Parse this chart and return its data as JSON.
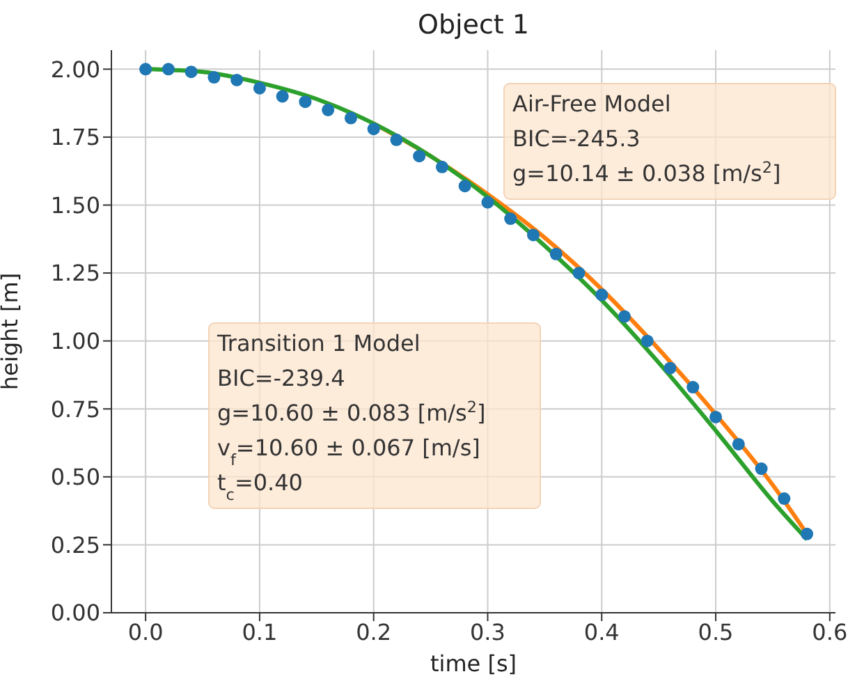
{
  "chart_data": {
    "type": "scatter",
    "title": "Object 1",
    "xlabel": "time [s]",
    "ylabel": "height [m]",
    "xlim": [
      -0.03,
      0.605
    ],
    "xticks": [
      {
        "value": 0,
        "label": "0.0"
      },
      {
        "value": 0.1,
        "label": "0.1"
      },
      {
        "value": 0.2,
        "label": "0.2"
      },
      {
        "value": 0.3,
        "label": "0.3"
      },
      {
        "value": 0.4,
        "label": "0.4"
      },
      {
        "value": 0.5,
        "label": "0.5"
      },
      {
        "value": 0.6,
        "label": "0.6"
      }
    ],
    "ylim": [
      0,
      2.07
    ],
    "yticks": [
      {
        "value": 0,
        "label": "0.00"
      },
      {
        "value": 0.25,
        "label": "0.25"
      },
      {
        "value": 0.5,
        "label": "0.50"
      },
      {
        "value": 0.75,
        "label": "0.75"
      },
      {
        "value": 1,
        "label": "1.00"
      },
      {
        "value": 1.25,
        "label": "1.25"
      },
      {
        "value": 1.5,
        "label": "1.50"
      },
      {
        "value": 1.75,
        "label": "1.75"
      },
      {
        "value": 2,
        "label": "2.00"
      }
    ],
    "grid": true,
    "series": [
      {
        "color": "#1f77b4",
        "marker": "circle",
        "x": [
          0,
          0.02,
          0.04,
          0.06,
          0.08,
          0.1,
          0.12,
          0.14,
          0.16,
          0.18,
          0.2,
          0.22,
          0.24,
          0.26,
          0.28,
          0.3,
          0.32,
          0.34,
          0.36,
          0.38,
          0.4,
          0.42,
          0.44,
          0.46,
          0.48,
          0.5,
          0.52,
          0.54,
          0.56,
          0.58
        ],
        "values": [
          2.0,
          2.0,
          1.99,
          1.97,
          1.96,
          1.93,
          1.9,
          1.88,
          1.85,
          1.82,
          1.78,
          1.74,
          1.68,
          1.64,
          1.57,
          1.51,
          1.45,
          1.39,
          1.32,
          1.25,
          1.17,
          1.09,
          1.0,
          0.9,
          0.83,
          0.72,
          0.62,
          0.53,
          0.42,
          0.29
        ]
      },
      {
        "type": "line",
        "color": "#ff7f0e",
        "marker": "none",
        "x": [
          0.2,
          0.25,
          0.3,
          0.35,
          0.4,
          0.45,
          0.5,
          0.55,
          0.58
        ],
        "values": [
          1.8,
          1.68,
          1.54,
          1.38,
          1.19,
          0.97,
          0.73,
          0.47,
          0.29
        ]
      },
      {
        "type": "line",
        "color": "#2ca02c",
        "marker": "none",
        "x": [
          0,
          0.05,
          0.1,
          0.15,
          0.2,
          0.25,
          0.3,
          0.35,
          0.4,
          0.45,
          0.5,
          0.55,
          0.58
        ],
        "values": [
          2.0,
          1.99,
          1.95,
          1.89,
          1.8,
          1.68,
          1.53,
          1.35,
          1.15,
          0.92,
          0.67,
          0.41,
          0.27
        ]
      }
    ],
    "annotations": [
      "Air-Free Model\nBIC=-245.3\ng=10.14 ± 0.038 [m/s$^{2}$]",
      "Transition 1 Model\nBIC=-239.4\ng=10.60 ± 0.083 [m/s$^{2}$]\nv$_{f}$=10.60 ± 0.067 [m/s]\nt$_{c}$=0.40"
    ]
  }
}
